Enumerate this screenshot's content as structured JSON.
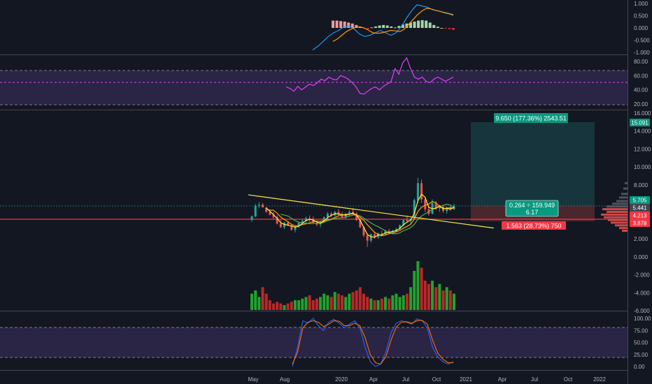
{
  "chart_data": {
    "type": "candlestick",
    "x_axis": {
      "labels": [
        "May",
        "Aug",
        "2020",
        "Apr",
        "Jul",
        "Oct",
        "2021",
        "Apr",
        "Jul",
        "Oct",
        "2022"
      ]
    },
    "macd_pane": {
      "y_ticks": [
        "1.000",
        "0.500",
        "0.000",
        "-0.500",
        "-1.000"
      ],
      "ylim": [
        -1.0,
        1.0
      ],
      "histogram": [
        0.3,
        0.3,
        0.28,
        0.26,
        0.22,
        0.18,
        0.12,
        0.05,
        -0.02,
        -0.05,
        0.02,
        0.06,
        0.1,
        0.12,
        0.1,
        0.06,
        0.02,
        0.08,
        0.14,
        0.18,
        0.22,
        0.26,
        0.3,
        0.32,
        0.3,
        0.22,
        0.12,
        0.05,
        0.0,
        -0.03,
        -0.05,
        -0.08
      ],
      "macd_line": [
        -0.9,
        -0.75,
        -0.55,
        -0.35,
        -0.2,
        -0.1,
        0.05,
        0.08,
        -0.05,
        -0.25,
        -0.35,
        -0.3,
        -0.2,
        -0.1,
        -0.2,
        -0.3,
        -0.2,
        0.05,
        0.4,
        0.7,
        0.95,
        0.9,
        0.85,
        0.75,
        0.7,
        0.65,
        0.6,
        0.55
      ],
      "signal_line": [
        -0.55,
        -0.45,
        -0.3,
        -0.15,
        -0.05,
        0.02,
        0.05,
        0.0,
        -0.1,
        -0.2,
        -0.22,
        -0.2,
        -0.15,
        -0.1,
        -0.12,
        -0.15,
        -0.05,
        0.15,
        0.35,
        0.55,
        0.7,
        0.8,
        0.78,
        0.72,
        0.68,
        0.62,
        0.58,
        0.52
      ]
    },
    "rsi_pane": {
      "y_ticks": [
        "80.00",
        "60.00",
        "40.00",
        "20.00"
      ],
      "ylim": [
        20,
        90
      ],
      "band": [
        30,
        70
      ],
      "signal_level": 56,
      "values": [
        44,
        42,
        38,
        45,
        40,
        44,
        48,
        46,
        50,
        55,
        53,
        58,
        55,
        54,
        60,
        58,
        55,
        50,
        44,
        35,
        34,
        38,
        42,
        44,
        40,
        45,
        48,
        52,
        70,
        62,
        78,
        85,
        70,
        58,
        55,
        58,
        52,
        50,
        55,
        58,
        55,
        52,
        55,
        58
      ]
    },
    "price_pane": {
      "y_ticks": [
        "16.000",
        "14.000",
        "12.000",
        "10.000",
        "8.000",
        "6.000",
        "4.000",
        "2.000",
        "0.000",
        "-2.000",
        "-4.000",
        "-6.000"
      ],
      "ylim": [
        -6.0,
        16.5
      ],
      "candles": [
        [
          4.1,
          4.6,
          3.9,
          4.5
        ],
        [
          4.5,
          5.9,
          4.4,
          5.7
        ],
        [
          5.7,
          6.1,
          5.4,
          5.8
        ],
        [
          5.8,
          6.0,
          5.6,
          5.5
        ],
        [
          5.5,
          5.5,
          4.9,
          5.0
        ],
        [
          5.0,
          5.2,
          4.6,
          4.7
        ],
        [
          4.7,
          5.0,
          4.2,
          4.4
        ],
        [
          4.4,
          4.6,
          3.6,
          3.7
        ],
        [
          3.7,
          4.1,
          3.2,
          3.3
        ],
        [
          3.3,
          3.9,
          3.1,
          3.8
        ],
        [
          3.8,
          4.0,
          3.4,
          3.5
        ],
        [
          3.5,
          3.6,
          2.9,
          3.0
        ],
        [
          3.0,
          3.5,
          2.7,
          3.4
        ],
        [
          3.4,
          3.9,
          3.2,
          3.8
        ],
        [
          3.8,
          4.2,
          3.5,
          4.0
        ],
        [
          4.0,
          4.5,
          3.8,
          4.3
        ],
        [
          4.3,
          4.6,
          3.9,
          4.2
        ],
        [
          4.2,
          4.5,
          3.7,
          3.8
        ],
        [
          3.8,
          4.1,
          3.4,
          3.6
        ],
        [
          3.6,
          4.0,
          3.3,
          3.9
        ],
        [
          3.9,
          4.5,
          3.8,
          4.4
        ],
        [
          4.4,
          5.0,
          4.2,
          4.8
        ],
        [
          4.8,
          5.0,
          4.4,
          4.6
        ],
        [
          4.6,
          5.1,
          4.5,
          5.0
        ],
        [
          5.0,
          5.3,
          4.6,
          4.7
        ],
        [
          4.7,
          5.0,
          4.3,
          4.4
        ],
        [
          4.4,
          4.9,
          4.2,
          4.8
        ],
        [
          4.8,
          5.2,
          4.5,
          5.0
        ],
        [
          5.0,
          5.4,
          4.7,
          4.8
        ],
        [
          4.8,
          5.0,
          4.0,
          4.1
        ],
        [
          4.1,
          4.3,
          3.2,
          3.3
        ],
        [
          3.3,
          3.4,
          2.2,
          2.4
        ],
        [
          2.4,
          2.6,
          1.1,
          1.8
        ],
        [
          1.8,
          2.6,
          1.6,
          2.5
        ],
        [
          2.5,
          2.8,
          2.0,
          2.2
        ],
        [
          2.2,
          2.7,
          2.0,
          2.6
        ],
        [
          2.6,
          2.9,
          2.3,
          2.5
        ],
        [
          2.5,
          3.0,
          2.4,
          2.9
        ],
        [
          2.9,
          3.1,
          2.6,
          2.7
        ],
        [
          2.7,
          3.0,
          2.5,
          2.9
        ],
        [
          2.9,
          3.2,
          2.7,
          3.1
        ],
        [
          3.1,
          3.6,
          3.0,
          3.5
        ],
        [
          3.5,
          4.2,
          3.4,
          4.1
        ],
        [
          4.1,
          4.6,
          3.8,
          4.0
        ],
        [
          4.0,
          4.3,
          3.7,
          4.2
        ],
        [
          4.2,
          6.5,
          4.1,
          6.3
        ],
        [
          6.3,
          8.8,
          6.0,
          8.2
        ],
        [
          8.2,
          8.6,
          6.0,
          6.4
        ],
        [
          6.4,
          6.6,
          5.0,
          5.3
        ],
        [
          5.3,
          5.6,
          4.6,
          4.8
        ],
        [
          4.8,
          6.4,
          4.7,
          6.0
        ],
        [
          6.0,
          6.2,
          5.2,
          5.4
        ],
        [
          5.4,
          5.8,
          5.0,
          5.6
        ],
        [
          5.6,
          5.8,
          4.9,
          5.1
        ],
        [
          5.1,
          5.6,
          4.8,
          5.5
        ],
        [
          5.5,
          5.7,
          5.1,
          5.3
        ],
        [
          5.3,
          5.9,
          5.2,
          5.7
        ]
      ],
      "trendline_start": [
        -1,
        6.9
      ],
      "trendline_end": [
        67,
        3.2
      ],
      "support_level": 4.213,
      "current_level": 5.705,
      "long_position": {
        "entry": 5.441,
        "stop": 3.878,
        "target": 15.091,
        "target_label": "9.650 (177.36%) 2543.51",
        "stop_label": "1.563 (28.73%) 750",
        "ratio_label": "0.264 ÷ 159.949",
        "ratio_sub": "6.17"
      },
      "price_labels": {
        "target": "15.091",
        "current": "5.705",
        "entry": "5.441",
        "support": "4.213",
        "stop": "3.878"
      },
      "volume": [
        0.5,
        0.6,
        0.4,
        0.7,
        0.5,
        0.3,
        0.2,
        0.25,
        0.2,
        0.15,
        0.2,
        0.25,
        0.3,
        0.3,
        0.35,
        0.4,
        0.45,
        0.3,
        0.35,
        0.4,
        0.5,
        0.45,
        0.4,
        0.55,
        0.5,
        0.45,
        0.4,
        0.5,
        0.55,
        0.6,
        0.7,
        0.5,
        0.4,
        0.35,
        0.3,
        0.3,
        0.35,
        0.4,
        0.35,
        0.45,
        0.5,
        0.4,
        0.45,
        0.5,
        0.7,
        1.2,
        1.5,
        1.3,
        0.9,
        0.8,
        0.9,
        0.7,
        0.8,
        0.6,
        0.7,
        0.6,
        0.5
      ]
    },
    "stoch_pane": {
      "y_ticks": [
        "100.00",
        "75.00",
        "50.00",
        "25.00",
        "0.00"
      ],
      "ylim": [
        -5,
        105
      ],
      "band": [
        20,
        80
      ],
      "k_values": [
        0,
        40,
        95,
        90,
        100,
        85,
        75,
        92,
        98,
        90,
        80,
        88,
        95,
        80,
        40,
        10,
        0,
        5,
        30,
        70,
        90,
        95,
        92,
        88,
        99,
        95,
        80,
        40,
        20,
        10,
        5,
        10
      ],
      "d_values": [
        5,
        30,
        80,
        92,
        95,
        92,
        83,
        88,
        95,
        94,
        85,
        85,
        90,
        85,
        60,
        25,
        8,
        5,
        20,
        55,
        82,
        92,
        93,
        90,
        95,
        96,
        88,
        55,
        28,
        15,
        8,
        8
      ]
    }
  }
}
